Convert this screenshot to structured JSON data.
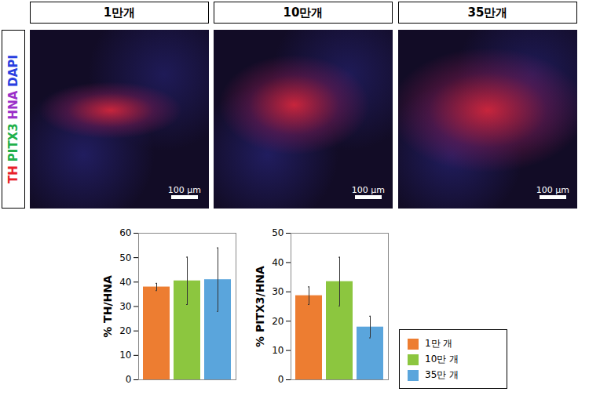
{
  "image_panels": {
    "channel_labels": [
      {
        "text": "TH",
        "color": "#e8202a"
      },
      {
        "text": "PITX3",
        "color": "#22b04b"
      },
      {
        "text": "HNA",
        "color": "#9b30c8"
      },
      {
        "text": "DAPI",
        "color": "#2a3fe0"
      }
    ],
    "headers": [
      "1만개",
      "10만개",
      "35만개"
    ],
    "scale_bar": "100 μm"
  },
  "chart_data": [
    {
      "type": "bar",
      "categories": [
        "1만 개",
        "10만 개",
        "35만 개"
      ],
      "values": [
        38,
        40.5,
        41
      ],
      "errors": [
        1.5,
        9.7,
        13
      ],
      "colors": [
        "#ed7d31",
        "#8cc63f",
        "#5aa5dc"
      ],
      "ylabel": "% TH/HNA",
      "ylim": [
        0,
        60
      ],
      "yticks": [
        0,
        10,
        20,
        30,
        40,
        50,
        60
      ],
      "tick_labels": "y"
    },
    {
      "type": "bar",
      "categories": [
        "1만 개",
        "10만 개",
        "35만 개"
      ],
      "values": [
        28.7,
        33.5,
        18
      ],
      "errors": [
        3,
        8.3,
        3.7
      ],
      "colors": [
        "#ed7d31",
        "#8cc63f",
        "#5aa5dc"
      ],
      "ylabel": "% PITX3/HNA",
      "ylim": [
        0,
        50
      ],
      "yticks": [
        0,
        10,
        20,
        30,
        40,
        50
      ],
      "tick_labels": "y",
      "legend": "right"
    }
  ]
}
